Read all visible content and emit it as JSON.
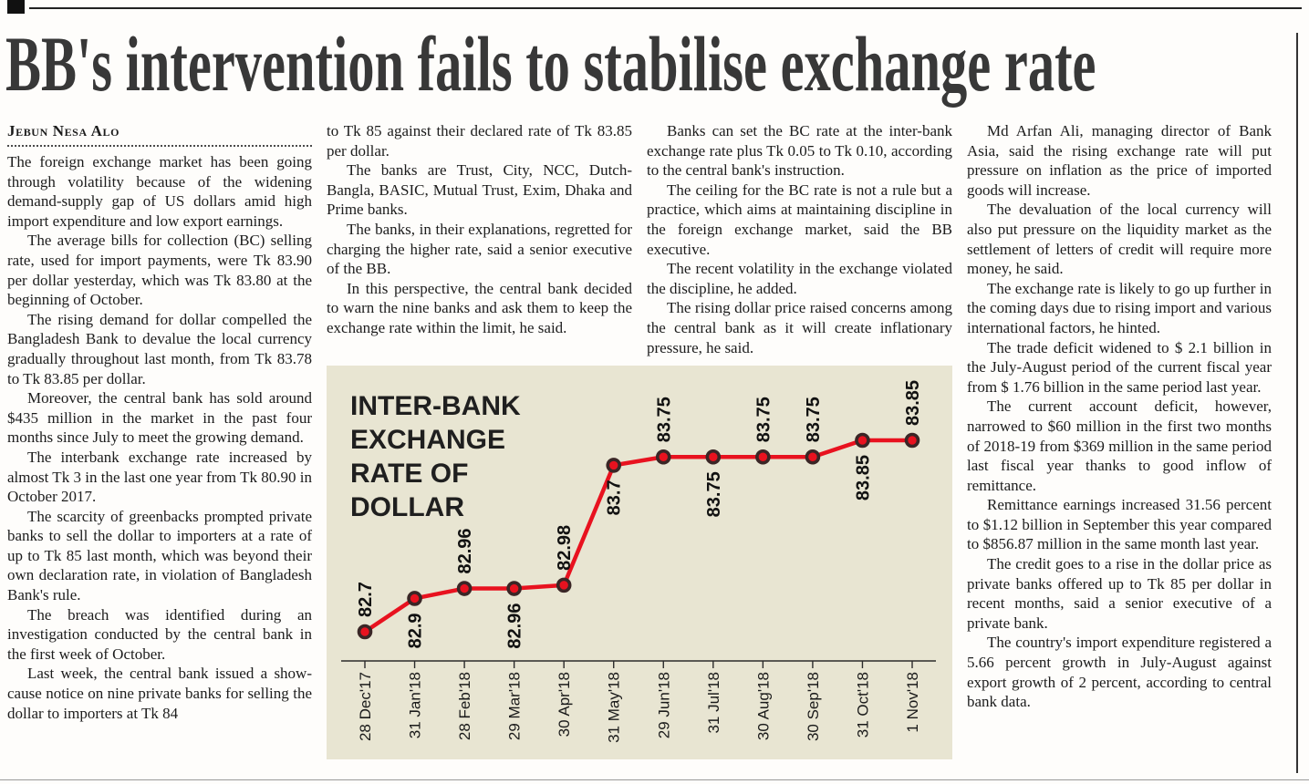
{
  "article": {
    "headline": "BB's intervention fails to stabilise exchange rate",
    "byline": "Jebun Nesa Alo",
    "columns": [
      {
        "first_indent": false,
        "paragraphs": [
          "The foreign exchange market has been going through volatility because of the widening demand-supply gap of US dollars amid high import expenditure and low export earnings.",
          "The average bills for collection (BC) selling rate, used for import payments, were Tk 83.90 per dollar yesterday, which was Tk 83.80 at the beginning of October.",
          "The rising demand for dollar compelled the Bangladesh Bank to devalue the local currency gradually throughout last month, from Tk 83.78 to Tk 83.85 per dollar.",
          "Moreover, the central bank has sold around $435 million in the market in the past four months since July to meet the growing demand.",
          "The interbank exchange rate increased by almost Tk 3 in the last one year from Tk 80.90 in October 2017.",
          "The scarcity of greenbacks prompted private banks to sell the dollar to importers at a rate of up to Tk 85 last month, which was beyond their own declaration rate, in violation of Bangladesh Bank's rule.",
          "The breach was identified during an investigation conducted by the central bank in the first week of October.",
          "Last week, the central bank issued a show-cause notice on nine private banks for selling the dollar to importers at Tk 84"
        ]
      },
      {
        "first_indent": false,
        "paragraphs": [
          "to Tk 85 against their declared rate of Tk 83.85 per dollar.",
          "The banks are Trust, City, NCC, Dutch-Bangla, BASIC, Mutual Trust, Exim, Dhaka and Prime banks.",
          "The banks, in their explanations, regretted for charging the higher rate, said a senior executive of the BB.",
          "In this perspective, the central bank decided to warn the nine banks and ask them to keep the exchange rate within the limit, he said."
        ]
      },
      {
        "first_indent": true,
        "paragraphs": [
          "Banks can set the BC rate at the inter-bank exchange rate plus Tk 0.05 to Tk 0.10, according to the central bank's instruction.",
          "The ceiling for the BC rate is not a rule but a practice, which aims at maintaining discipline in the foreign exchange market, said the BB executive.",
          "The recent volatility in the exchange violated the discipline, he added.",
          "The rising dollar price raised concerns among the central bank as it will create inflationary pressure, he said."
        ]
      },
      {
        "first_indent": true,
        "paragraphs": [
          "Md Arfan Ali, managing director of Bank Asia, said the rising exchange rate will put pressure on inflation as the price of imported goods will increase.",
          "The devaluation of the local currency will also put pressure on the liquidity market as the settlement of letters of credit will require more money, he said.",
          "The exchange rate is likely to go up further in the coming days due to rising import and various international factors, he hinted.",
          "The trade deficit widened to $ 2.1 billion in the July-August period of the current fiscal year from $ 1.76 billion in the same period last year.",
          "The current account deficit, however, narrowed to $60 million in the first two months of 2018-19 from $369 million in the same period last fiscal year thanks to good inflow of remittance.",
          "Remittance earnings increased 31.56 percent to $1.12 billion in September this year compared to $856.87 million in the same month last year.",
          "The credit goes to a rise in the dollar price as private banks offered up to Tk 85 per dollar in recent months, said a senior executive of a private bank.",
          "The country's import expenditure registered a 5.66 percent growth in July-August against export growth of 2 percent, according to central bank data."
        ]
      }
    ]
  },
  "chart_data": {
    "type": "line",
    "title": "INTER-BANK EXCHANGE RATE OF DOLLAR",
    "title_lines": [
      "INTER-BANK",
      "EXCHANGE",
      "RATE OF",
      "DOLLAR"
    ],
    "categories": [
      "28 Dec'17",
      "31 Jan'18",
      "28 Feb'18",
      "29 Mar'18",
      "30 Apr'18",
      "31 May'18",
      "29 Jun'18",
      "31 Jul'18",
      "30 Aug'18",
      "30 Sep'18",
      "31 Oct'18",
      "1 Nov'18"
    ],
    "values": [
      82.7,
      82.9,
      82.96,
      82.96,
      82.98,
      83.7,
      83.75,
      83.75,
      83.75,
      83.75,
      83.85,
      83.85
    ],
    "value_labels": [
      "82.7",
      "82.9",
      "82.96",
      "82.96",
      "82.98",
      "83.7",
      "83.75",
      "83.75",
      "83.75",
      "83.75",
      "83.85",
      "83.85"
    ],
    "label_positions": [
      "above",
      "below",
      "above",
      "below",
      "above",
      "below",
      "above",
      "below",
      "above",
      "above",
      "below",
      "above"
    ],
    "xlabel": "",
    "ylabel": "",
    "ylim": [
      82.6,
      83.95
    ],
    "grid": false,
    "legend": false,
    "line_color": "#e8121f",
    "point_ring_color": "#3a2626",
    "background": "#e8e5d2",
    "text_color": "#1a1a1a"
  }
}
